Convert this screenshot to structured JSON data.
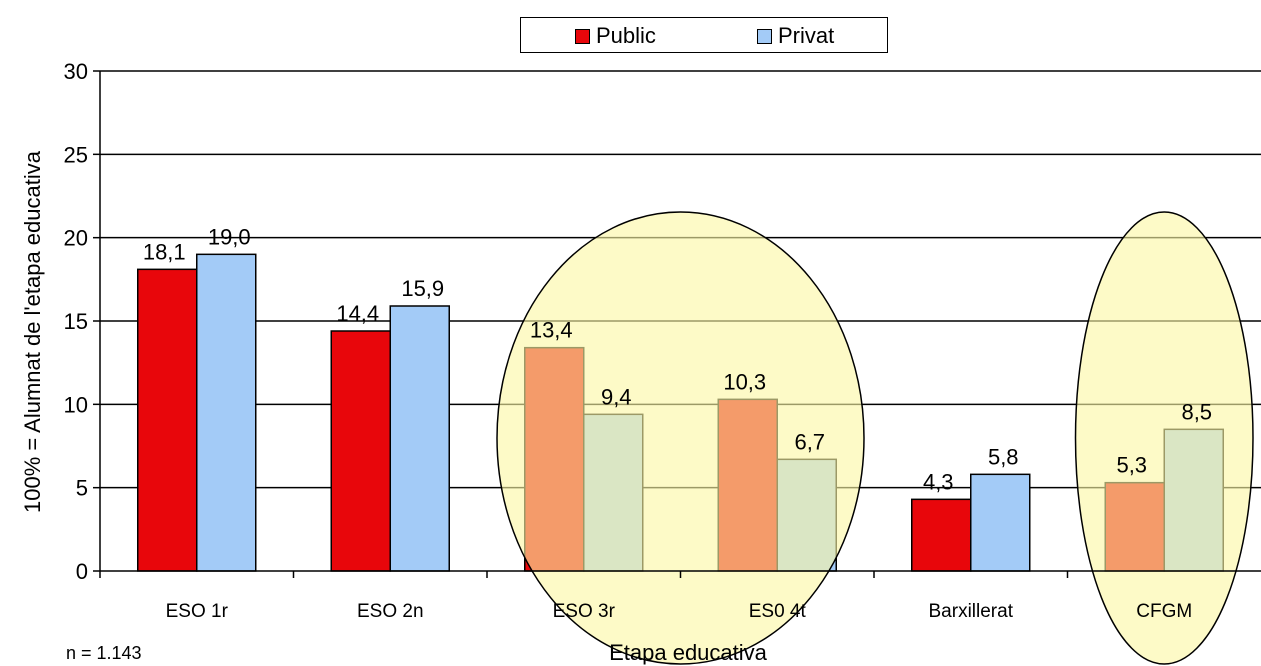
{
  "chart_data": {
    "type": "bar",
    "categories": [
      "ESO 1r",
      "ESO 2n",
      "ESO 3r",
      "ES0 4t",
      "Barxillerat",
      "CFGM"
    ],
    "series": [
      {
        "name": "Public",
        "values": [
          18.1,
          14.4,
          13.4,
          10.3,
          4.3,
          5.3
        ],
        "labels": [
          "18,1",
          "14,4",
          "13,4",
          "10,3",
          "4,3",
          "5,3"
        ],
        "color": "#e8060b"
      },
      {
        "name": "Privat",
        "values": [
          19.0,
          15.9,
          9.4,
          6.7,
          5.8,
          8.5
        ],
        "labels": [
          "19,0",
          "15,9",
          "9,4",
          "6,7",
          "5,8",
          "8,5"
        ],
        "color": "#a3cbf7"
      }
    ],
    "xlabel": "Etapa educativa",
    "ylabel": "100% = Alumnat de l'etapa educativa",
    "ylim": [
      0,
      30
    ],
    "yticks": [
      0,
      5,
      10,
      15,
      20,
      25,
      30
    ],
    "grid": true,
    "legend_position": "top-center",
    "highlighted_categories": [
      "ESO 3r",
      "ES0 4t",
      "CFGM"
    ],
    "highlight_color": "#fbf7a5",
    "footnote": "n = 1.143"
  }
}
